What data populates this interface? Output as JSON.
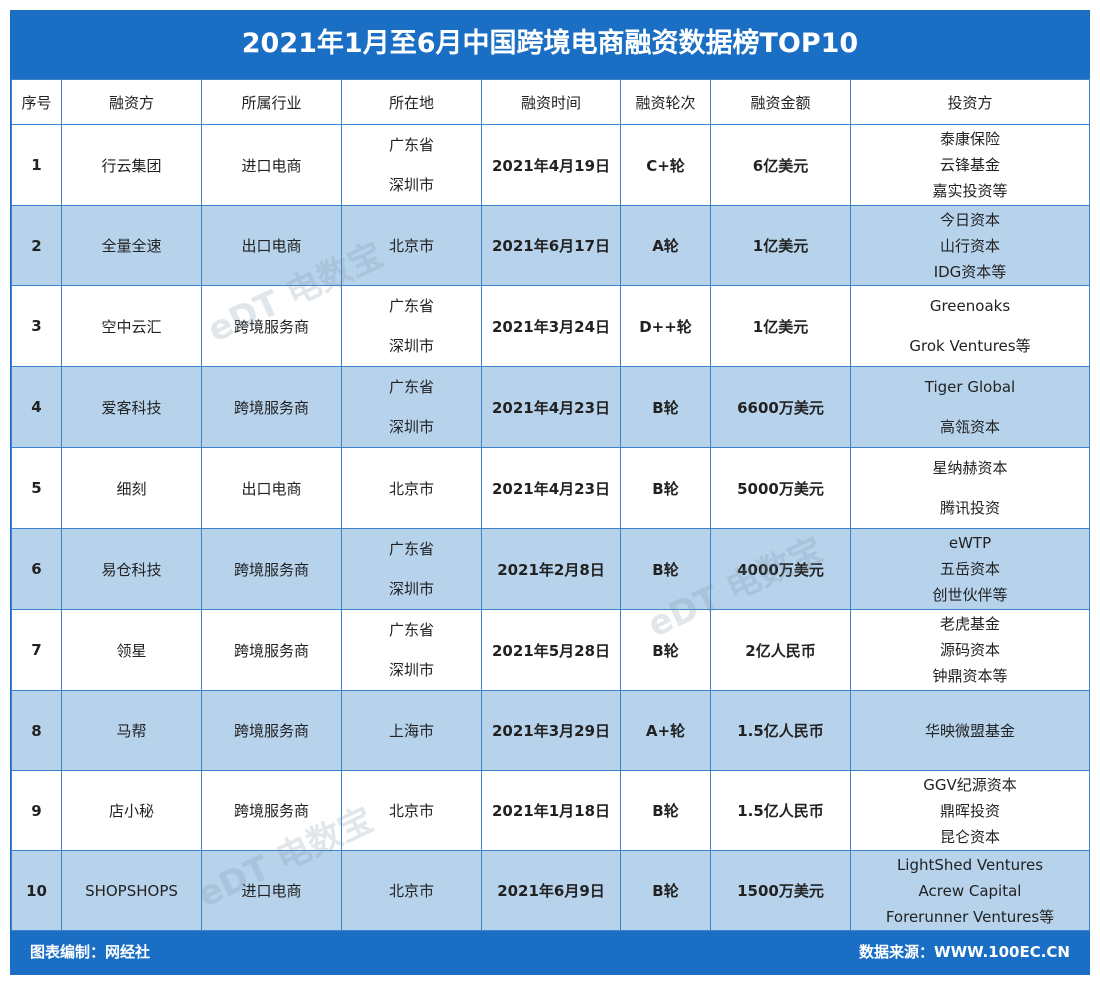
{
  "title": "2021年1月至6月中国跨境电商融资数据榜TOP10",
  "headers": [
    "序号",
    "融资方",
    "所属行业",
    "所在地",
    "融资时间",
    "融资轮次",
    "融资金额",
    "投资方"
  ],
  "rows": [
    {
      "no": "1",
      "company": "行云集团",
      "industry": "进口电商",
      "location": [
        "广东省",
        "深圳市"
      ],
      "date": "2021年4月19日",
      "round": "C+轮",
      "amount": "6亿美元",
      "investors": [
        "泰康保险",
        "云锋基金",
        "嘉实投资等"
      ]
    },
    {
      "no": "2",
      "company": "全量全速",
      "industry": "出口电商",
      "location": [
        "北京市"
      ],
      "date": "2021年6月17日",
      "round": "A轮",
      "amount": "1亿美元",
      "investors": [
        "今日资本",
        "山行资本",
        "IDG资本等"
      ]
    },
    {
      "no": "3",
      "company": "空中云汇",
      "industry": "跨境服务商",
      "location": [
        "广东省",
        "深圳市"
      ],
      "date": "2021年3月24日",
      "round": "D++轮",
      "amount": "1亿美元",
      "investors": [
        "Greenoaks",
        "Grok Ventures等"
      ]
    },
    {
      "no": "4",
      "company": "爱客科技",
      "industry": "跨境服务商",
      "location": [
        "广东省",
        "深圳市"
      ],
      "date": "2021年4月23日",
      "round": "B轮",
      "amount": "6600万美元",
      "investors": [
        "Tiger Global",
        "高瓴资本"
      ]
    },
    {
      "no": "5",
      "company": "细刻",
      "industry": "出口电商",
      "location": [
        "北京市"
      ],
      "date": "2021年4月23日",
      "round": "B轮",
      "amount": "5000万美元",
      "investors": [
        "星纳赫资本",
        "腾讯投资"
      ]
    },
    {
      "no": "6",
      "company": "易仓科技",
      "industry": "跨境服务商",
      "location": [
        "广东省",
        "深圳市"
      ],
      "date": "2021年2月8日",
      "round": "B轮",
      "amount": "4000万美元",
      "investors": [
        "eWTP",
        "五岳资本",
        "创世伙伴等"
      ]
    },
    {
      "no": "7",
      "company": "领星",
      "industry": "跨境服务商",
      "location": [
        "广东省",
        "深圳市"
      ],
      "date": "2021年5月28日",
      "round": "B轮",
      "amount": "2亿人民币",
      "investors": [
        "老虎基金",
        "源码资本",
        "钟鼎资本等"
      ]
    },
    {
      "no": "8",
      "company": "马帮",
      "industry": "跨境服务商",
      "location": [
        "上海市"
      ],
      "date": "2021年3月29日",
      "round": "A+轮",
      "amount": "1.5亿人民币",
      "investors": [
        "华映微盟基金"
      ]
    },
    {
      "no": "9",
      "company": "店小秘",
      "industry": "跨境服务商",
      "location": [
        "北京市"
      ],
      "date": "2021年1月18日",
      "round": "B轮",
      "amount": "1.5亿人民币",
      "investors": [
        "GGV纪源资本",
        "鼎晖投资",
        "昆仑资本"
      ]
    },
    {
      "no": "10",
      "company": "SHOPSHOPS",
      "industry": "进口电商",
      "location": [
        "北京市"
      ],
      "date": "2021年6月9日",
      "round": "B轮",
      "amount": "1500万美元",
      "investors": [
        "LightShed Ventures",
        "Acrew Capital",
        "Forerunner Ventures等"
      ]
    }
  ],
  "footer": {
    "left": "图表编制：网经社",
    "right": "数据来源：WWW.100EC.CN"
  },
  "watermark": "电数宝",
  "colors": {
    "header_blue": "#1a6fc4",
    "alt_row": "#b7d3ec",
    "border": "#3d83cc"
  }
}
